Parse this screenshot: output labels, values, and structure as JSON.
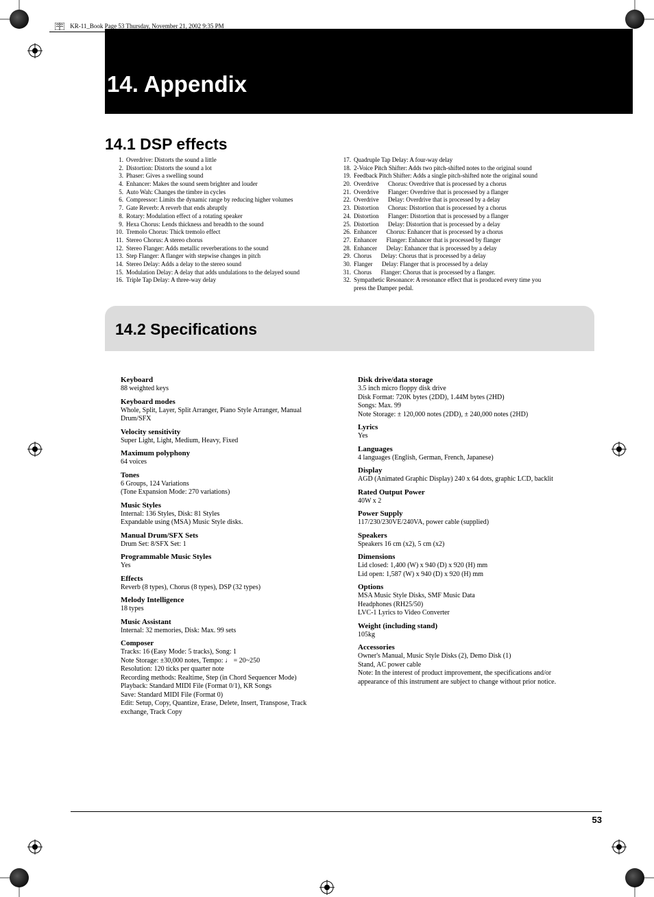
{
  "header_running": "KR-11_Book  Page 53  Thursday, November 21, 2002  9:35 PM",
  "chapter_title": "14. Appendix",
  "sec1_title": "14.1 DSP effects",
  "sec2_title": "14.2 Specifications",
  "page_number": "53",
  "dsp_left": [
    {
      "n": "1.",
      "t": "Overdrive: Distorts the sound a little"
    },
    {
      "n": "2.",
      "t": "Distortion: Distorts the sound a lot"
    },
    {
      "n": "3.",
      "t": "Phaser: Gives a swelling sound"
    },
    {
      "n": "4.",
      "t": "Enhancer: Makes the sound seem brighter and louder"
    },
    {
      "n": "5.",
      "t": "Auto Wah: Changes the timbre in cycles"
    },
    {
      "n": "6.",
      "t": "Compressor: Limits the dynamic range by reducing higher volumes"
    },
    {
      "n": "7.",
      "t": "Gate Reverb: A reverb that ends abruptly"
    },
    {
      "n": "8.",
      "t": "Rotary: Modulation effect of a rotating speaker"
    },
    {
      "n": "9.",
      "t": "Hexa Chorus: Lends thickness and breadth to the sound"
    },
    {
      "n": "10.",
      "t": "Tremolo Chorus: Thick tremolo effect"
    },
    {
      "n": "11.",
      "t": "Stereo Chorus: A stereo chorus"
    },
    {
      "n": "12.",
      "t": "Stereo Flanger: Adds metallic reverberations to the sound"
    },
    {
      "n": "13.",
      "t": "Step Flanger: A flanger with stepwise changes in pitch"
    },
    {
      "n": "14.",
      "t": "Stereo Delay: Adds a delay to the stereo sound"
    },
    {
      "n": "15.",
      "t": "Modulation Delay: A delay that adds undulations to the delayed sound"
    },
    {
      "n": "16.",
      "t": "Triple Tap Delay: A three-way delay"
    }
  ],
  "dsp_right": [
    {
      "n": "17.",
      "t": "Quadruple Tap Delay: A four-way delay"
    },
    {
      "n": "18.",
      "t": "2-Voice Pitch Shifter: Adds two pitch-shifted notes to the original sound"
    },
    {
      "n": "19.",
      "t": "Feedback Pitch Shifter: Adds a single pitch-shifted note the original sound"
    },
    {
      "n": "20.",
      "t": "Overdrive      Chorus: Overdrive that is processed by a chorus"
    },
    {
      "n": "21.",
      "t": "Overdrive      Flanger: Overdrive that is processed by a flanger"
    },
    {
      "n": "22.",
      "t": "Overdrive      Delay: Overdrive that is processed by a delay"
    },
    {
      "n": "23.",
      "t": "Distortion      Chorus: Distortion that is processed by a chorus"
    },
    {
      "n": "24.",
      "t": "Distortion      Flanger: Distortion that is processed by a flanger"
    },
    {
      "n": "25.",
      "t": "Distortion      Delay: Distortion that is processed by a delay"
    },
    {
      "n": "26.",
      "t": "Enhancer      Chorus: Enhancer that is processed by a chorus"
    },
    {
      "n": "27.",
      "t": "Enhancer      Flanger: Enhancer that is processed by flanger"
    },
    {
      "n": "28.",
      "t": "Enhancer      Delay: Enhancer that is processed by a delay"
    },
    {
      "n": "29.",
      "t": "Chorus      Delay: Chorus that is processed by a delay"
    },
    {
      "n": "30.",
      "t": "Flanger      Delay: Flanger that is processed by a delay"
    },
    {
      "n": "31.",
      "t": "Chorus      Flanger: Chorus that is processed by a flanger."
    },
    {
      "n": "32.",
      "t": "Sympathetic Resonance: A resonance effect that is produced every time you"
    }
  ],
  "dsp_right_follow": "press the Damper pedal.",
  "specs_left": [
    {
      "h": "Keyboard",
      "b": [
        "88 weighted keys"
      ]
    },
    {
      "h": "Keyboard modes",
      "b": [
        "Whole, Split, Layer, Split Arranger, Piano Style Arranger, Manual Drum/SFX"
      ]
    },
    {
      "h": "Velocity sensitivity",
      "b": [
        "Super Light, Light, Medium, Heavy, Fixed"
      ]
    },
    {
      "h": "Maximum polyphony",
      "b": [
        "64 voices"
      ]
    },
    {
      "h": "Tones",
      "b": [
        "6 Groups, 124 Variations",
        "(Tone Expansion Mode: 270 variations)"
      ]
    },
    {
      "h": "Music Styles",
      "b": [
        "Internal: 136 Styles, Disk: 81 Styles",
        "Expandable using (MSA) Music Style disks."
      ]
    },
    {
      "h": "Manual Drum/SFX Sets",
      "b": [
        "Drum Set: 8/SFX Set: 1"
      ]
    },
    {
      "h": "Programmable Music Styles",
      "b": [
        "Yes"
      ]
    },
    {
      "h": "Effects",
      "b": [
        "Reverb (8 types), Chorus (8 types), DSP (32 types)"
      ]
    },
    {
      "h": "Melody Intelligence",
      "b": [
        "18 types"
      ]
    },
    {
      "h": "Music Assistant",
      "b": [
        "Internal: 32 memories, Disk: Max. 99 sets"
      ]
    },
    {
      "h": "Composer",
      "b": [
        "Tracks: 16 (Easy Mode: 5 tracks), Song: 1",
        "Note Storage: ±30,000 notes, Tempo: ♩ = 20~250",
        "Resolution: 120 ticks per quarter note",
        "Recording methods: Realtime, Step (in Chord Sequencer Mode)",
        "Playback: Standard MIDI File (Format 0/1), KR Songs",
        "Save: Standard MIDI File (Format 0)",
        "Edit: Setup, Copy, Quantize, Erase, Delete, Insert, Transpose, Track exchange, Track Copy"
      ]
    }
  ],
  "specs_right": [
    {
      "h": "Disk drive/data storage",
      "b": [
        "3.5 inch micro floppy disk drive",
        "Disk Format: 720K bytes (2DD), 1.44M bytes (2HD)",
        "Songs: Max. 99",
        "Note Storage: ± 120,000 notes (2DD), ± 240,000 notes (2HD)"
      ]
    },
    {
      "h": "Lyrics",
      "b": [
        "Yes"
      ]
    },
    {
      "h": "Languages",
      "b": [
        "4 languages (English, German, French, Japanese)"
      ]
    },
    {
      "h": "Display",
      "b": [
        "AGD (Animated Graphic Display) 240 x 64 dots, graphic LCD, backlit"
      ]
    },
    {
      "h": "Rated Output Power",
      "b": [
        "40W x 2"
      ]
    },
    {
      "h": "Power Supply",
      "b": [
        "117/230/230VE/240VA, power cable (supplied)"
      ]
    },
    {
      "h": "Speakers",
      "b": [
        "Speakers 16 cm (x2), 5 cm (x2)"
      ]
    },
    {
      "h": "Dimensions",
      "b": [
        "Lid closed: 1,400 (W) x 940 (D) x 920 (H) mm",
        "Lid open: 1,587 (W) x 940 (D) x 920 (H) mm"
      ]
    },
    {
      "h": "Options",
      "b": [
        "MSA Music Style Disks, SMF Music Data",
        "Headphones (RH25/50)",
        "LVC-1 Lyrics to Video Converter"
      ]
    },
    {
      "h": "Weight (including stand)",
      "b": [
        "105kg"
      ]
    },
    {
      "h": "Accessories",
      "b": [
        "Owner's Manual, Music Style Disks (2), Demo Disk (1)",
        "Stand, AC power cable"
      ],
      "note": "Note: In the interest of product improvement, the specifications and/or appearance of this instrument are subject to change without prior notice."
    }
  ]
}
